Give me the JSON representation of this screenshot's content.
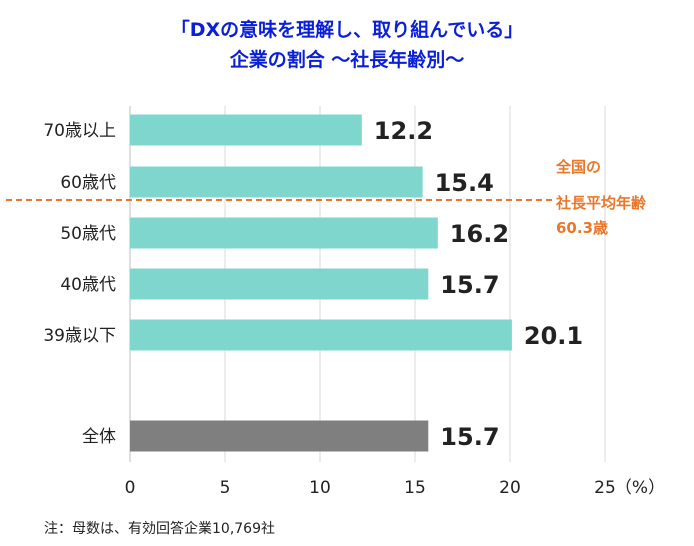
{
  "chart_data": {
    "type": "bar",
    "orientation": "horizontal",
    "title_line1": "「DXの意味を理解し、取り組んでいる」",
    "title_line2": "企業の割合 〜社長年齢別〜",
    "categories": [
      "70歳以上",
      "60歳代",
      "50歳代",
      "40歳代",
      "39歳以下",
      "全体"
    ],
    "values": [
      12.2,
      15.4,
      16.2,
      15.7,
      20.1,
      15.7
    ],
    "value_labels": [
      "12.2",
      "15.4",
      "16.2",
      "15.7",
      "20.1",
      "15.7"
    ],
    "xlim": [
      0,
      25
    ],
    "x_ticks": [
      "0",
      "5",
      "10",
      "15",
      "20",
      "25"
    ],
    "x_unit": "（%）",
    "grid": "vertical",
    "colors": {
      "bar": "#7fd6cc",
      "total_bar": "#7f7f7f",
      "reference_line": "#e9782b",
      "title": "#0a1fd8"
    },
    "reference_annotation": [
      "全国の",
      "社長平均年齢",
      "60.3歳"
    ],
    "note": "注：母数は、有効回答企業10,769社"
  }
}
